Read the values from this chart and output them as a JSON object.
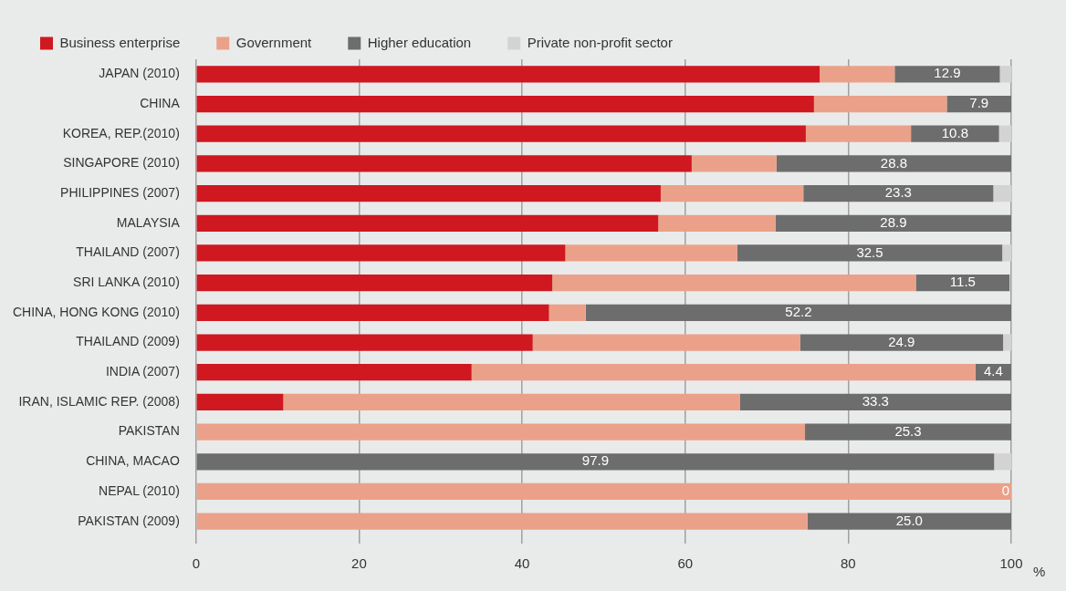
{
  "chart_data": {
    "type": "bar",
    "orientation": "horizontal",
    "stacked": true,
    "categories": [
      "JAPAN (2010)",
      "CHINA",
      "KOREA, REP.(2010)",
      "SINGAPORE (2010)",
      "PHILIPPINES (2007)",
      "MALAYSIA",
      "THAILAND (2007)",
      "SRI LANKA (2010)",
      "CHINA, HONG KONG (2010)",
      "THAILAND (2009)",
      "INDIA (2007)",
      "IRAN, ISLAMIC REP. (2008)",
      "PAKISTAN",
      "CHINA, MACAO",
      "NEPAL (2010)",
      "PAKISTAN (2009)"
    ],
    "series": [
      {
        "name": "Business enterprise",
        "color": "#cf1820",
        "values": [
          76.5,
          75.8,
          74.8,
          60.8,
          57.0,
          56.7,
          45.3,
          43.7,
          43.3,
          41.3,
          33.8,
          10.7,
          null,
          null,
          null,
          null
        ]
      },
      {
        "name": "Government",
        "color": "#eba189",
        "values": [
          9.2,
          16.3,
          12.9,
          10.4,
          17.5,
          14.4,
          21.1,
          44.6,
          4.5,
          32.8,
          61.8,
          56.0,
          74.7,
          null,
          100,
          75.0
        ]
      },
      {
        "name": "Higher education",
        "color": "#6d6d6d",
        "values": [
          12.9,
          7.9,
          10.8,
          28.8,
          23.3,
          28.9,
          32.5,
          11.5,
          52.2,
          24.9,
          4.4,
          33.3,
          25.3,
          97.9,
          0,
          25.0
        ],
        "value_labels": [
          "12.9",
          "7.9",
          "10.8",
          "28.8",
          "23.3",
          "28.9",
          "32.5",
          "11.5",
          "52.2",
          "24.9",
          "4.4",
          "33.3",
          "25.3",
          "97.9",
          "0",
          "25.0"
        ]
      },
      {
        "name": "Private non-profit sector",
        "color": "#d3d3d3",
        "values": [
          1.4,
          null,
          1.5,
          null,
          2.2,
          null,
          1.1,
          null,
          null,
          1.0,
          null,
          null,
          null,
          2.1,
          null,
          null
        ]
      }
    ],
    "xlabel": "%",
    "xlim": [
      0,
      100
    ],
    "xticks": [
      0,
      20,
      40,
      60,
      80,
      100
    ],
    "grid": "x",
    "legend": "top left"
  }
}
